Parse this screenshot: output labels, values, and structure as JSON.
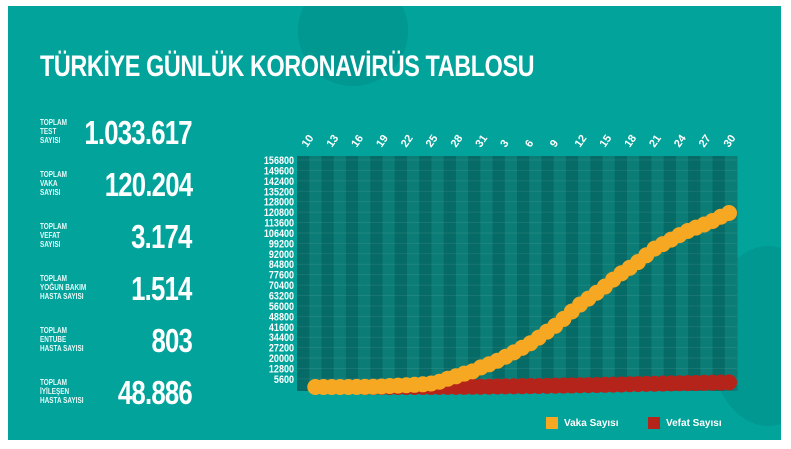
{
  "title": "TÜRKİYE GÜNLÜK KORONAVİRÜS TABLOSU",
  "stats": [
    {
      "label": "TOPLAM\nTEST\nSAYISI",
      "value": "1.033.617"
    },
    {
      "label": "TOPLAM\nVAKA\nSAYISI",
      "value": "120.204"
    },
    {
      "label": "TOPLAM\nVEFAT\nSAYISI",
      "value": "3.174"
    },
    {
      "label": "TOPLAM\nYOĞUN BAKIM\nHASTA SAYISI",
      "value": "1.514"
    },
    {
      "label": "TOPLAM\nENTUBE\nHASTA SAYISI",
      "value": "803"
    },
    {
      "label": "TOPLAM\nİYİLEŞEN\nHASTA SAYISI",
      "value": "48.886"
    }
  ],
  "colors": {
    "background": "#01a39b",
    "vaka": "#f7a823",
    "vefat": "#b5241a",
    "stripe_dark": "#066a66",
    "stripe_light": "#0b7c76"
  },
  "chart_data": {
    "type": "line",
    "x_tick_labels": [
      "10",
      "13",
      "16",
      "19",
      "22",
      "25",
      "28",
      "31",
      "3",
      "6",
      "9",
      "12",
      "15",
      "18",
      "21",
      "24",
      "27",
      "30"
    ],
    "y_tick_labels": [
      "156800",
      "149600",
      "142400",
      "135200",
      "128000",
      "120800",
      "113600",
      "106400",
      "99200",
      "92000",
      "84800",
      "77600",
      "70400",
      "63200",
      "56000",
      "48800",
      "41600",
      "34400",
      "27200",
      "20000",
      "12800",
      "5600"
    ],
    "ylim": [
      0,
      156800
    ],
    "grid": true,
    "legend": "bottom-right",
    "x": [
      "11.03",
      "12.03",
      "13.03",
      "14.03",
      "15.03",
      "16.03",
      "17.03",
      "18.03",
      "19.03",
      "20.03",
      "21.03",
      "22.03",
      "23.03",
      "24.03",
      "25.03",
      "26.03",
      "27.03",
      "28.03",
      "29.03",
      "30.03",
      "31.03",
      "01.04",
      "02.04",
      "03.04",
      "04.04",
      "05.04",
      "06.04",
      "07.04",
      "08.04",
      "09.04",
      "10.04",
      "11.04",
      "12.04",
      "13.04",
      "14.04",
      "15.04",
      "16.04",
      "17.04",
      "18.04",
      "19.04",
      "20.04",
      "21.04",
      "22.04",
      "23.04",
      "24.04",
      "25.04",
      "26.04",
      "27.04",
      "28.04",
      "29.04",
      "30.04"
    ],
    "series": [
      {
        "name": "Vaka Sayısı",
        "color": "#f7a823",
        "values": [
          1,
          1,
          5,
          6,
          18,
          47,
          98,
          191,
          359,
          670,
          947,
          1236,
          1529,
          1872,
          2433,
          3629,
          5698,
          7402,
          9217,
          10827,
          13531,
          15679,
          18135,
          20921,
          23934,
          27069,
          30217,
          34109,
          38226,
          42282,
          47029,
          52167,
          56956,
          61049,
          65111,
          69392,
          74193,
          78546,
          82329,
          86306,
          90980,
          95591,
          98674,
          101790,
          104912,
          107773,
          110130,
          112261,
          114653,
          117589,
          120204
        ]
      },
      {
        "name": "Vefat Sayısı",
        "color": "#b5241a",
        "values": [
          0,
          0,
          0,
          0,
          0,
          0,
          1,
          2,
          3,
          4,
          9,
          30,
          37,
          44,
          59,
          75,
          92,
          108,
          131,
          168,
          214,
          277,
          356,
          425,
          501,
          574,
          649,
          725,
          812,
          908,
          1006,
          1101,
          1198,
          1296,
          1403,
          1518,
          1643,
          1769,
          1890,
          2017,
          2140,
          2259,
          2376,
          2491,
          2600,
          2706,
          2805,
          2900,
          2992,
          3081,
          3174
        ]
      }
    ]
  }
}
